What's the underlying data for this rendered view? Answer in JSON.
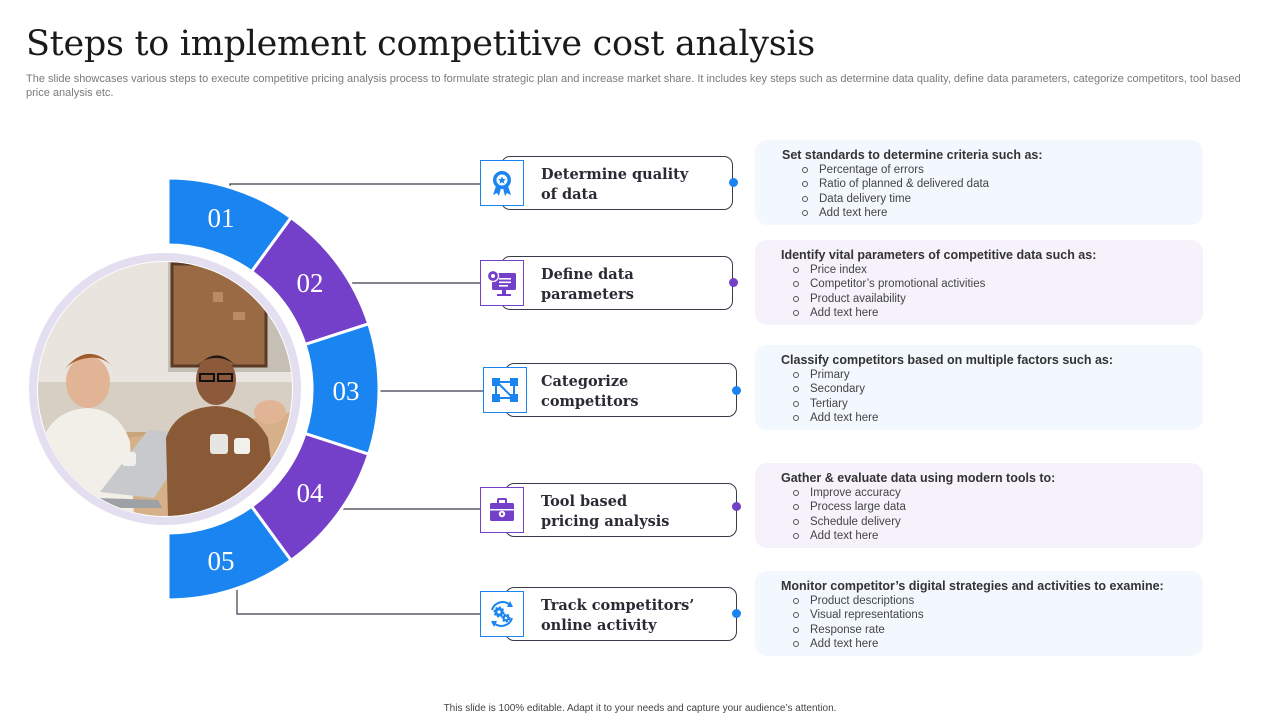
{
  "title": "Steps to implement competitive cost analysis",
  "subtitle": "The slide showcases various steps to execute competitive pricing analysis process to formulate strategic plan and increase market share. It includes key steps such as determine data quality, define data parameters, categorize competitors, tool based price analysis etc.",
  "colors": {
    "blue": "#1a85f0",
    "purple": "#7540c9",
    "blue_panel": "#f3f7fe",
    "purple_panel": "#f6f2fc",
    "ring": "#e4dff0"
  },
  "steps": [
    {
      "number": "01",
      "label_line1": "Determine quality",
      "label_line2": "of data",
      "icon": "award-badge-icon",
      "color": "blue"
    },
    {
      "number": "02",
      "label_line1": "Define data",
      "label_line2": "parameters",
      "icon": "monitor-settings-icon",
      "color": "purple"
    },
    {
      "number": "03",
      "label_line1": "Categorize",
      "label_line2": "competitors",
      "icon": "network-squares-icon",
      "color": "blue"
    },
    {
      "number": "04",
      "label_line1": "Tool based",
      "label_line2": "pricing analysis",
      "icon": "toolbox-icon",
      "color": "purple"
    },
    {
      "number": "05",
      "label_line1": "Track competitors’",
      "label_line2": "online activity",
      "icon": "gears-cycle-icon",
      "color": "blue"
    }
  ],
  "panels": [
    {
      "title": "Set standards  to determine criteria such as:",
      "items": [
        "Percentage of errors",
        "Ratio of planned & delivered data",
        "Data delivery time",
        "Add text here"
      ]
    },
    {
      "title": "Identify vital parameters of competitive data such  as:",
      "items": [
        "Price index",
        "Competitor’s promotional activities",
        "Product availability",
        "Add text here"
      ]
    },
    {
      "title": "Classify  competitors  based on multiple factors  such  as:",
      "items": [
        "Primary",
        "Secondary",
        "Tertiary",
        "Add text here"
      ]
    },
    {
      "title": "Gather & evaluate data using modern tools to:",
      "items": [
        "Improve accuracy",
        "Process large data",
        "Schedule delivery",
        "Add text here"
      ]
    },
    {
      "title": "Monitor competitor’s  digital strategies and activities to examine:",
      "items": [
        "Product descriptions",
        "Visual representations",
        "Response rate",
        "Add text here"
      ]
    }
  ],
  "photo": {
    "alt": "team-meeting-photo"
  },
  "footer": "This slide is 100% editable.  Adapt it to your needs and capture your audience’s attention."
}
